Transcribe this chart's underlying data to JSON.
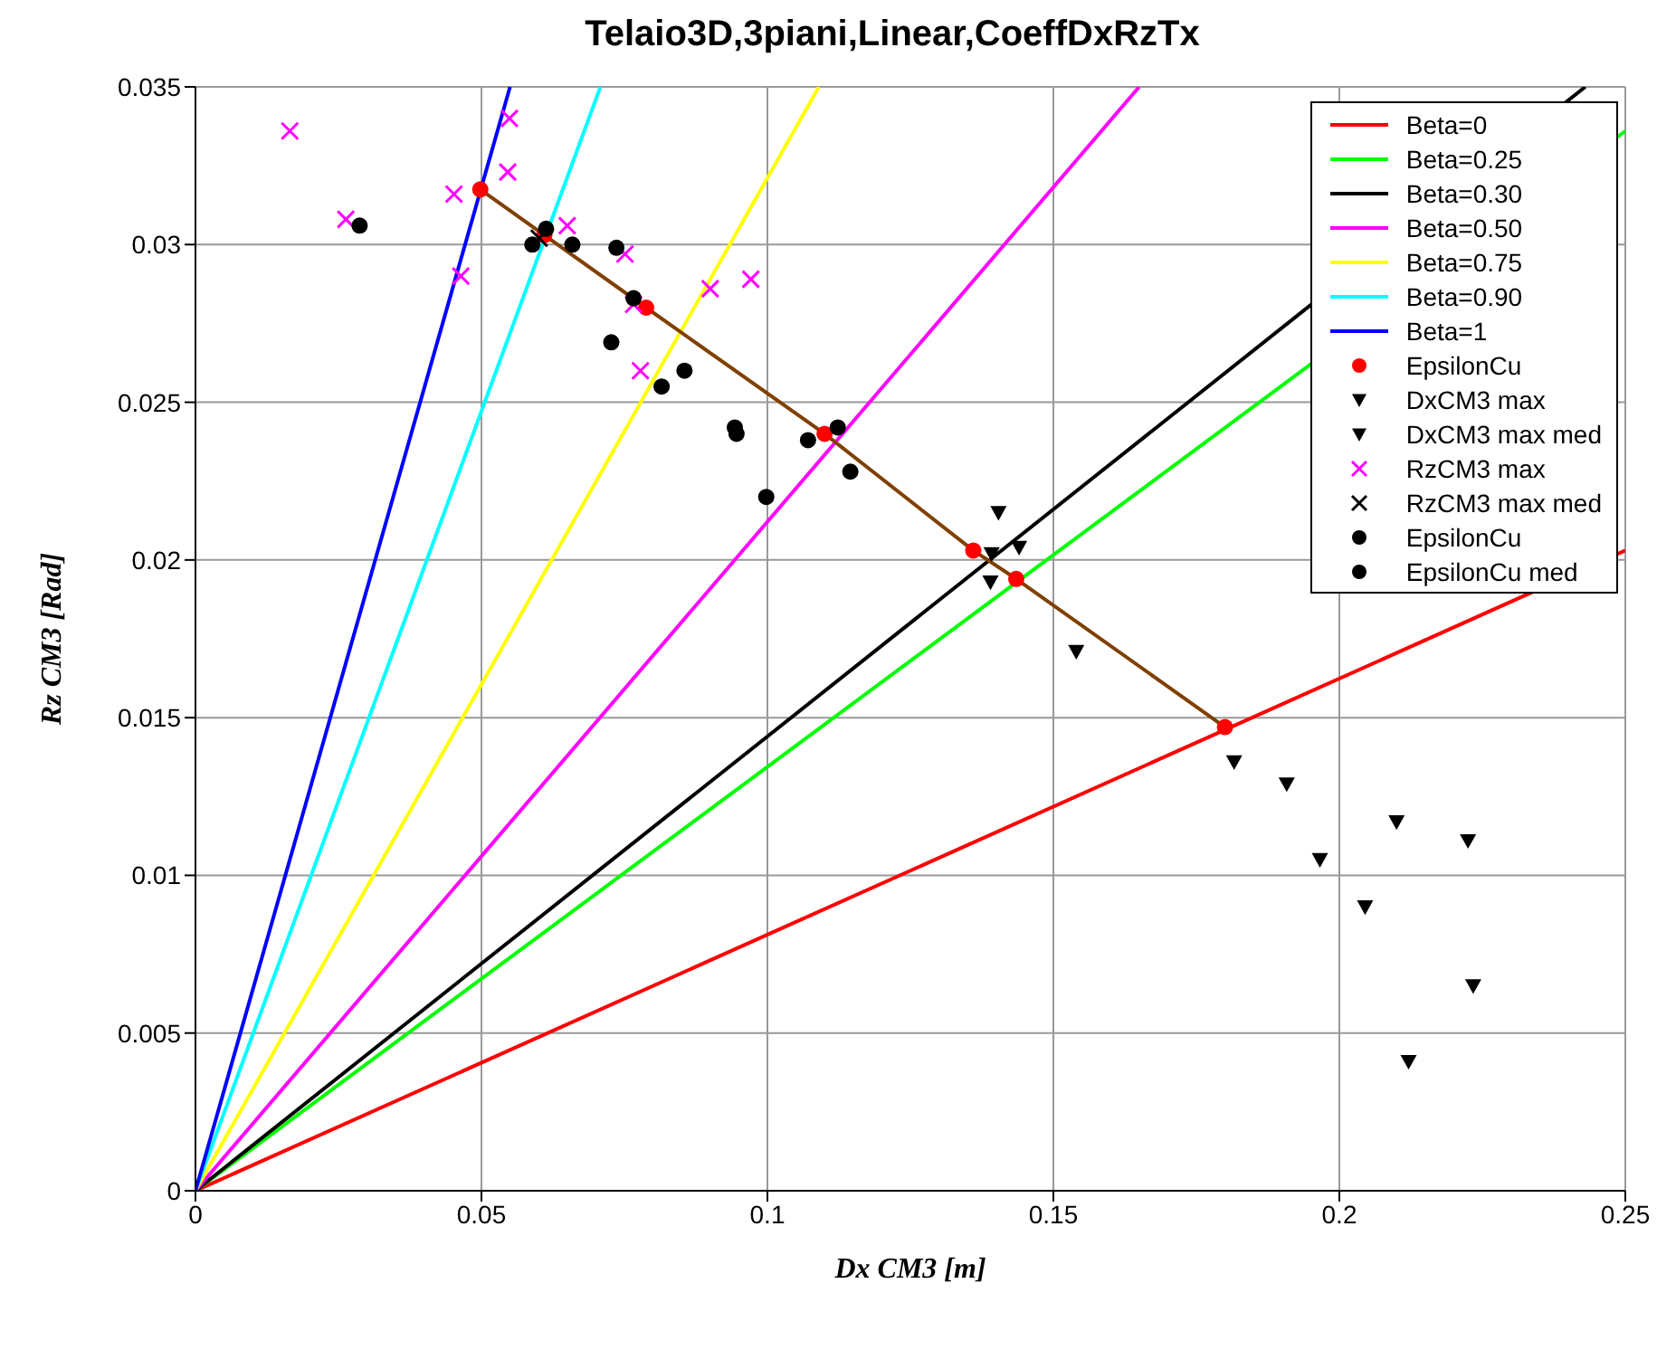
{
  "chart_data": {
    "type": "scatter",
    "title": "Telaio3D,3piani,Linear,CoeffDxRzTx",
    "xlabel": "Dx CM3  [m]",
    "ylabel": "Rz CM3  [Rad]",
    "xlim": [
      0,
      0.25
    ],
    "ylim": [
      0,
      0.035
    ],
    "xticks": [
      0,
      0.05,
      0.1,
      0.15,
      0.2,
      0.25
    ],
    "yticks": [
      0,
      0.005,
      0.01,
      0.015,
      0.02,
      0.025,
      0.03,
      0.035
    ],
    "grid": true,
    "legend": "top right",
    "series": [
      {
        "name": "Beta=0",
        "type": "line",
        "marker": "none",
        "color": "#ff0000",
        "x": [
          0,
          0.25
        ],
        "values": [
          0,
          0.0203
        ]
      },
      {
        "name": "Beta=0.25",
        "type": "line",
        "marker": "none",
        "color": "#00ff00",
        "x": [
          0,
          0.25
        ],
        "values": [
          0,
          0.0336
        ]
      },
      {
        "name": "Beta=0.30",
        "type": "line",
        "marker": "none",
        "color": "#000000",
        "x": [
          0,
          0.243
        ],
        "values": [
          0,
          0.035
        ]
      },
      {
        "name": "Beta=0.50",
        "type": "line",
        "marker": "none",
        "color": "#ff00ff",
        "x": [
          0,
          0.165
        ],
        "values": [
          0,
          0.035
        ]
      },
      {
        "name": "Beta=0.75",
        "type": "line",
        "marker": "none",
        "color": "#ffff00",
        "x": [
          0,
          0.109
        ],
        "values": [
          0,
          0.035
        ]
      },
      {
        "name": "Beta=0.90",
        "type": "line",
        "marker": "none",
        "color": "#00ffff",
        "x": [
          0,
          0.0708
        ],
        "values": [
          0,
          0.035
        ]
      },
      {
        "name": "Beta=1",
        "type": "line",
        "marker": "none",
        "color": "#0000ff",
        "x": [
          0,
          0.055
        ],
        "values": [
          0,
          0.035
        ]
      },
      {
        "type": "line",
        "marker": "none",
        "color": "#804000",
        "x": [
          0.0498,
          0.061,
          0.0788,
          0.11,
          0.136,
          0.1435,
          0.18
        ],
        "values": [
          0.03175,
          0.0303,
          0.028,
          0.024,
          0.0203,
          0.0194,
          0.0147
        ]
      },
      {
        "name": "EpsilonCu",
        "marker": "circle",
        "color": "#ff0000",
        "x": [
          0.0498,
          0.061,
          0.0788,
          0.11,
          0.136,
          0.1435,
          0.18
        ],
        "values": [
          0.03175,
          0.0303,
          0.028,
          0.024,
          0.0203,
          0.0194,
          0.0147
        ]
      },
      {
        "name": "DxCM3 max",
        "marker": "triangle",
        "color": "#000000",
        "x": [
          0.1404,
          0.1392,
          0.144,
          0.139,
          0.154,
          0.1908,
          0.21,
          0.2225,
          0.1966,
          0.2045,
          0.2234,
          0.2121
        ],
        "values": [
          0.0215,
          0.0202,
          0.0204,
          0.0193,
          0.0171,
          0.0129,
          0.0117,
          0.0111,
          0.0105,
          0.009,
          0.0065,
          0.0041
        ]
      },
      {
        "name": "DxCM3 max med",
        "marker": "triangle",
        "color": "#000000",
        "x": [
          0.1816
        ],
        "values": [
          0.0136
        ]
      },
      {
        "name": "RzCM3 max",
        "marker": "cross",
        "color": "#ff00ff",
        "x": [
          0.0165,
          0.0263,
          0.0452,
          0.0549,
          0.0546,
          0.0464,
          0.065,
          0.0751,
          0.0766,
          0.0778,
          0.09,
          0.0971
        ],
        "values": [
          0.0336,
          0.0308,
          0.0316,
          0.034,
          0.0323,
          0.029,
          0.0306,
          0.0297,
          0.0281,
          0.026,
          0.0286,
          0.0289
        ]
      },
      {
        "name": "RzCM3 max med",
        "marker": "cross",
        "color": "#000000",
        "x": [
          0.0601
        ],
        "values": [
          0.0302
        ]
      },
      {
        "name": "EpsilonCu",
        "marker": "circle",
        "color": "#000000",
        "x": [
          0.0287,
          0.0589,
          0.0613,
          0.0659,
          0.0736,
          0.0766,
          0.0727,
          0.0815,
          0.0943,
          0.0946,
          0.1071,
          0.1123,
          0.1145,
          0.0998
        ],
        "values": [
          0.0306,
          0.03,
          0.0305,
          0.03,
          0.0299,
          0.0283,
          0.0269,
          0.0255,
          0.0242,
          0.024,
          0.0238,
          0.0242,
          0.0228,
          0.022
        ]
      },
      {
        "name": "EpsilonCu med",
        "marker": "circle",
        "color": "#000000",
        "x": [
          0.0855
        ],
        "values": [
          0.026
        ]
      }
    ]
  }
}
